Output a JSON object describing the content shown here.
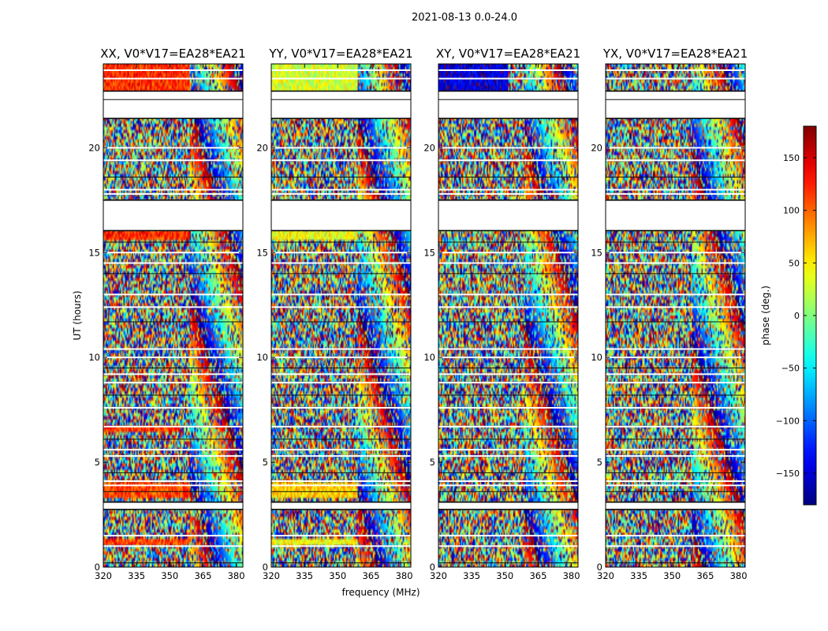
{
  "title": "2021-08-13 0.0-24.0",
  "chart_data": [
    {
      "type": "heatmap",
      "title": "XX, V0*V17=EA28*EA21",
      "xlabel": "",
      "ylabel": "UT (hours)",
      "xlim": [
        320,
        383
      ],
      "ylim": [
        0,
        24
      ],
      "xticks": [
        320,
        335,
        350,
        365,
        380
      ],
      "yticks": [
        0,
        5,
        10,
        15,
        20
      ],
      "character": "coherent red/orange phase band in low channels during 21.5-24 h, 15.5-16 h, 6.5 h, 3.5-4 h and 1.2 h; noisy phase elsewhere"
    },
    {
      "type": "heatmap",
      "title": "YY, V0*V17=EA28*EA21",
      "xlabel": "frequency (MHz)",
      "ylabel": "",
      "xlim": [
        320,
        383
      ],
      "ylim": [
        0,
        24
      ],
      "xticks": [
        320,
        335,
        350,
        365,
        380
      ],
      "yticks": [
        0,
        5,
        10,
        15,
        20
      ],
      "character": "coherent yellow-green phase band in low channels during 21.5-24 h, 15.5-16 h and 1.2 h; noisy phase elsewhere"
    },
    {
      "type": "heatmap",
      "title": "XY, V0*V17=EA28*EA21",
      "xlabel": "",
      "ylabel": "",
      "xlim": [
        320,
        383
      ],
      "ylim": [
        0,
        24
      ],
      "xticks": [
        320,
        335,
        350,
        365,
        380
      ],
      "yticks": [
        0,
        5,
        10,
        15,
        20
      ],
      "character": "coherent blue phase band in low channels during 21.5-24 h; noisy phase elsewhere"
    },
    {
      "type": "heatmap",
      "title": "YX, V0*V17=EA28*EA21",
      "xlabel": "",
      "ylabel": "",
      "xlim": [
        320,
        383
      ],
      "ylim": [
        0,
        24
      ],
      "xticks": [
        320,
        335,
        350,
        365,
        380
      ],
      "yticks": [
        0,
        5,
        10,
        15,
        20
      ],
      "character": "noisy phase throughout"
    }
  ],
  "colorbar": {
    "label": "phase (deg.)",
    "range": [
      -180,
      180
    ],
    "ticks": [
      150,
      100,
      50,
      0,
      -50,
      -100,
      -150
    ],
    "colormap": "jet"
  }
}
